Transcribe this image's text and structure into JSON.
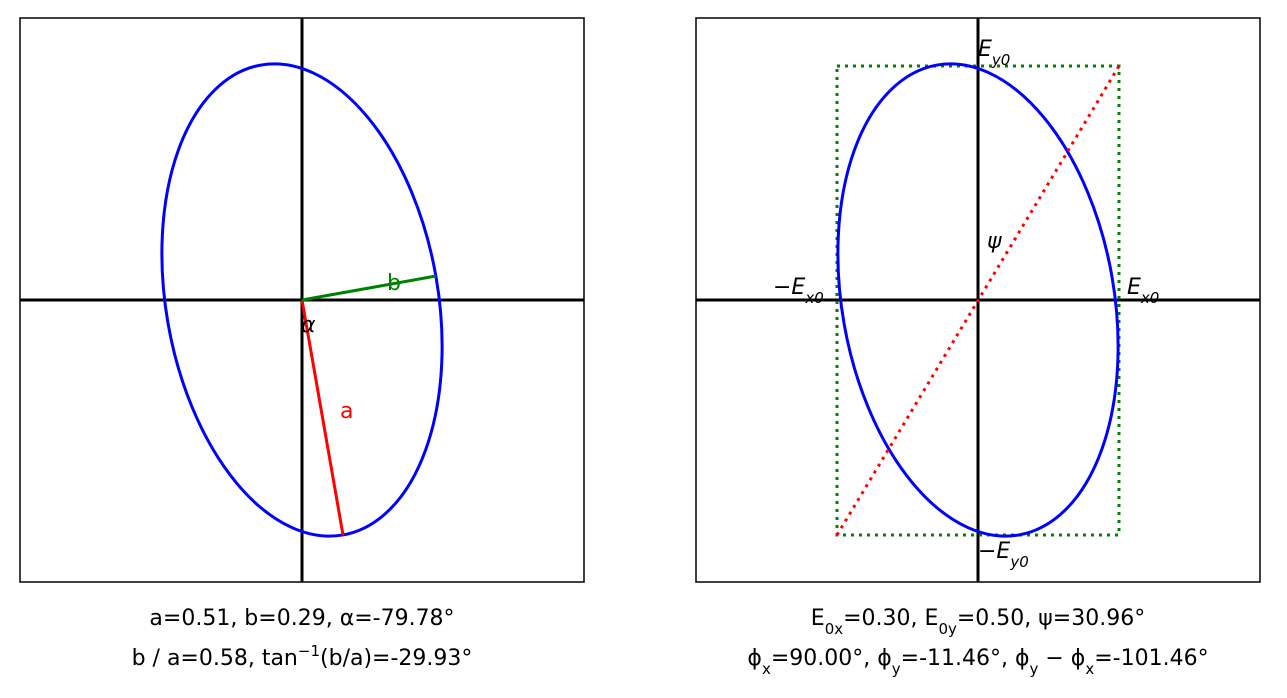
{
  "left_panel": {
    "labels": {
      "a": [
        {
          "t": "a"
        }
      ],
      "b": [
        {
          "t": "b"
        }
      ],
      "alpha": [
        {
          "t": "α"
        }
      ]
    },
    "caption": [
      [
        {
          "t": "a=0.51, b=0.29, "
        },
        {
          "t": "α"
        },
        {
          "t": "=-79.78°"
        }
      ],
      [
        {
          "t": "b / a=0.58, tan"
        },
        {
          "sup": "−1"
        },
        {
          "t": "(b/a)=-29.93°"
        }
      ]
    ]
  },
  "right_panel": {
    "labels": {
      "ey0": [
        {
          "t": "E"
        },
        {
          "sub": "y0"
        }
      ],
      "neg_ex0": [
        {
          "t": "−E"
        },
        {
          "sub": "x0"
        }
      ],
      "ex0": [
        {
          "t": "E"
        },
        {
          "sub": "x0"
        }
      ],
      "psi": [
        {
          "t": "ψ"
        }
      ],
      "neg_ey0": [
        {
          "t": "−E"
        },
        {
          "sub": "y0"
        }
      ]
    },
    "caption": [
      [
        {
          "t": "E"
        },
        {
          "sub": "0x"
        },
        {
          "t": "=0.30, E"
        },
        {
          "sub": "0y"
        },
        {
          "t": "=0.50, ψ=30.96°"
        }
      ],
      [
        {
          "t": "ϕ"
        },
        {
          "sub": "x"
        },
        {
          "t": "=90.00°, ϕ"
        },
        {
          "sub": "y"
        },
        {
          "t": "=-11.46°, ϕ"
        },
        {
          "sub": "y"
        },
        {
          "t": " − ϕ"
        },
        {
          "sub": "x"
        },
        {
          "t": "=-101.46°"
        }
      ]
    ]
  }
}
